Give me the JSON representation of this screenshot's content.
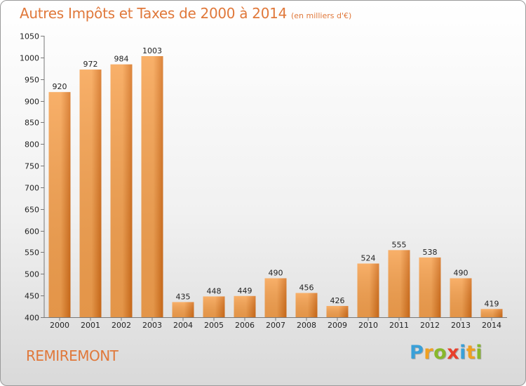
{
  "colors": {
    "accent": "#e0783a",
    "bar_light": "#f7a24f",
    "bar_dark": "#d56f1a"
  },
  "location": "REMIREMONT",
  "logo": {
    "text": "Proxiti",
    "letters": [
      {
        "ch": "P",
        "color": "#3aa0d8"
      },
      {
        "ch": "r",
        "color": "#f0a020"
      },
      {
        "ch": "o",
        "color": "#88b82c"
      },
      {
        "ch": "x",
        "color": "#e8402c"
      },
      {
        "ch": "i",
        "color": "#3aa0d8"
      },
      {
        "ch": "t",
        "color": "#f0a020"
      },
      {
        "ch": "i",
        "color": "#88b82c"
      }
    ]
  },
  "chart_data": {
    "type": "bar",
    "title": "Autres Impôts et Taxes de 2000 à 2014",
    "subtitle": "(en milliers d'€)",
    "xlabel": "",
    "ylabel": "",
    "categories": [
      "2000",
      "2001",
      "2002",
      "2003",
      "2004",
      "2005",
      "2006",
      "2007",
      "2008",
      "2009",
      "2010",
      "2011",
      "2012",
      "2013",
      "2014"
    ],
    "values": [
      920,
      972,
      984,
      1003,
      435,
      448,
      449,
      490,
      456,
      426,
      524,
      555,
      538,
      490,
      419
    ],
    "ylim": [
      400,
      1050
    ],
    "yticks": [
      400,
      450,
      500,
      550,
      600,
      650,
      700,
      750,
      800,
      850,
      900,
      950,
      1000,
      1050
    ],
    "grid": false,
    "legend": "none"
  }
}
